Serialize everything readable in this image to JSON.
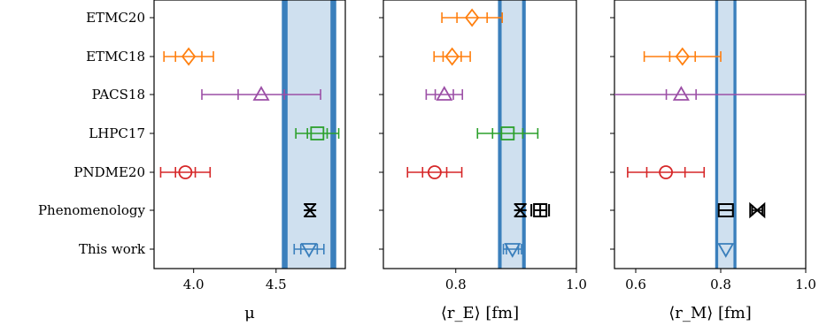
{
  "chart_data": {
    "type": "errorbar-forest",
    "rows": [
      "ETMC20",
      "ETMC18",
      "PACS18",
      "LHPC17",
      "PNDME20",
      "Phenomenology",
      "This work"
    ],
    "panels": [
      {
        "xlabel": "μ",
        "xlim": [
          3.76,
          4.92
        ],
        "xticks": [
          4.0,
          4.5
        ],
        "xtick_labels": [
          "4.0",
          "4.5"
        ],
        "band": {
          "center": 4.7,
          "inner_half": 0.13,
          "outer_half": 0.165
        },
        "points": [
          {
            "row": "ETMC18",
            "x": 3.97,
            "err_inner": 0.08,
            "err_outer": 0.15,
            "color": "#ff7f0e",
            "marker": "diamond"
          },
          {
            "row": "PACS18",
            "x": 4.41,
            "err_inner": 0.14,
            "err_outer": 0.36,
            "color": "#9c4fa6",
            "marker": "triangle-up"
          },
          {
            "row": "LHPC17",
            "x": 4.75,
            "err_inner": 0.06,
            "err_outer": 0.13,
            "color": "#2ca02c",
            "marker": "square"
          },
          {
            "row": "PNDME20",
            "x": 3.95,
            "err_inner": 0.06,
            "err_outer": 0.15,
            "color": "#d62728",
            "marker": "circle"
          },
          {
            "row": "Phenomenology",
            "x": 4.706,
            "err_inner": 0.0,
            "err_outer": 0.0,
            "color": "#000000",
            "marker": "x-bar"
          },
          {
            "row": "This work",
            "x": 4.7,
            "err_inner": 0.05,
            "err_outer": 0.09,
            "color": "#3a7fbc",
            "marker": "triangle-down"
          }
        ]
      },
      {
        "xlabel": "⟨r_E⟩ [fm]",
        "xlim": [
          0.68,
          1.0
        ],
        "xticks": [
          0.8,
          1.0
        ],
        "xtick_labels": [
          "0.8",
          "1.0"
        ],
        "band": {
          "center": 0.893,
          "inner_half": 0.017,
          "outer_half": 0.023
        },
        "points": [
          {
            "row": "ETMC20",
            "x": 0.827,
            "err_inner": 0.025,
            "err_outer": 0.05,
            "color": "#ff7f0e",
            "marker": "diamond"
          },
          {
            "row": "ETMC18",
            "x": 0.794,
            "err_inner": 0.015,
            "err_outer": 0.03,
            "color": "#ff7f0e",
            "marker": "diamond"
          },
          {
            "row": "PACS18",
            "x": 0.781,
            "err_inner": 0.015,
            "err_outer": 0.03,
            "color": "#9c4fa6",
            "marker": "triangle-up"
          },
          {
            "row": "LHPC17",
            "x": 0.886,
            "err_inner": 0.025,
            "err_outer": 0.05,
            "color": "#2ca02c",
            "marker": "square"
          },
          {
            "row": "PNDME20",
            "x": 0.765,
            "err_inner": 0.02,
            "err_outer": 0.045,
            "color": "#d62728",
            "marker": "circle"
          },
          {
            "row": "Phenomenology",
            "x": 0.907,
            "err_inner": 0.0,
            "err_outer": 0.0,
            "color": "#000000",
            "marker": "x-bar"
          },
          {
            "row": "Phenomenology",
            "x": 0.94,
            "err_inner": 0.0,
            "err_outer": 0.0,
            "color": "#000000",
            "marker": "square-plus"
          },
          {
            "row": "This work",
            "x": 0.894,
            "err_inner": 0.01,
            "err_outer": 0.015,
            "color": "#3a7fbc",
            "marker": "triangle-down"
          }
        ]
      },
      {
        "xlabel": "⟨r_M⟩ [fm]",
        "xlim": [
          0.55,
          1.0
        ],
        "xticks": [
          0.6,
          0.8,
          1.0
        ],
        "xtick_labels": [
          "0.6",
          "0.8",
          "1.0"
        ],
        "band": {
          "center": 0.812,
          "inner_half": 0.018,
          "outer_half": 0.025
        },
        "points": [
          {
            "row": "ETMC18",
            "x": 0.71,
            "err_inner": 0.03,
            "err_outer": 0.09,
            "color": "#ff7f0e",
            "marker": "diamond"
          },
          {
            "row": "PACS18",
            "x": 0.707,
            "err_inner": 0.035,
            "err_outer": 0.4,
            "color": "#9c4fa6",
            "marker": "triangle-up"
          },
          {
            "row": "PNDME20",
            "x": 0.671,
            "err_inner": 0.045,
            "err_outer": 0.09,
            "color": "#d62728",
            "marker": "circle"
          },
          {
            "row": "Phenomenology",
            "x": 0.812,
            "err_inner": 0.0,
            "err_outer": 0.0,
            "color": "#000000",
            "marker": "square-minus"
          },
          {
            "row": "Phenomenology",
            "x": 0.886,
            "err_inner": 0.012,
            "err_outer": 0.012,
            "color": "#000000",
            "marker": "bowtie"
          },
          {
            "row": "This work",
            "x": 0.812,
            "err_inner": 0.0,
            "err_outer": 0.0,
            "color": "#3a7fbc",
            "marker": "triangle-down"
          }
        ]
      }
    ]
  }
}
